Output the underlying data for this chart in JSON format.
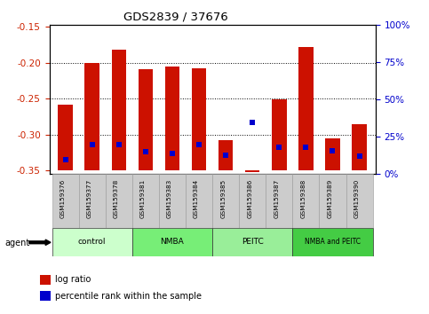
{
  "title": "GDS2839 / 37676",
  "samples": [
    "GSM159376",
    "GSM159377",
    "GSM159378",
    "GSM159381",
    "GSM159383",
    "GSM159384",
    "GSM159385",
    "GSM159386",
    "GSM159387",
    "GSM159388",
    "GSM159389",
    "GSM159390"
  ],
  "log_ratios": [
    -0.258,
    -0.2,
    -0.182,
    -0.209,
    -0.205,
    -0.208,
    -0.308,
    -0.352,
    -0.251,
    -0.178,
    -0.305,
    -0.285
  ],
  "percentile_ranks": [
    10,
    20,
    20,
    15,
    14,
    20,
    13,
    35,
    18,
    18,
    16,
    12
  ],
  "bar_bottom": -0.35,
  "ylim_left": [
    -0.355,
    -0.148
  ],
  "ylim_right": [
    0,
    100
  ],
  "yticks_left": [
    -0.35,
    -0.3,
    -0.25,
    -0.2,
    -0.15
  ],
  "yticks_right": [
    0,
    25,
    50,
    75,
    100
  ],
  "group_bounds": [
    [
      -0.5,
      2.5,
      "#ccffcc",
      "control"
    ],
    [
      2.5,
      5.5,
      "#77ee77",
      "NMBA"
    ],
    [
      5.5,
      8.5,
      "#99ee99",
      "PEITC"
    ],
    [
      8.5,
      11.5,
      "#44cc44",
      "NMBA and PEITC"
    ]
  ],
  "bar_color": "#cc1100",
  "dot_color": "#0000cc",
  "bar_width": 0.55,
  "dot_size": 18,
  "agent_label": "agent",
  "legend_items": [
    "log ratio",
    "percentile rank within the sample"
  ],
  "background_color": "#ffffff",
  "tick_label_color_left": "#cc2200",
  "tick_label_color_right": "#0000cc"
}
